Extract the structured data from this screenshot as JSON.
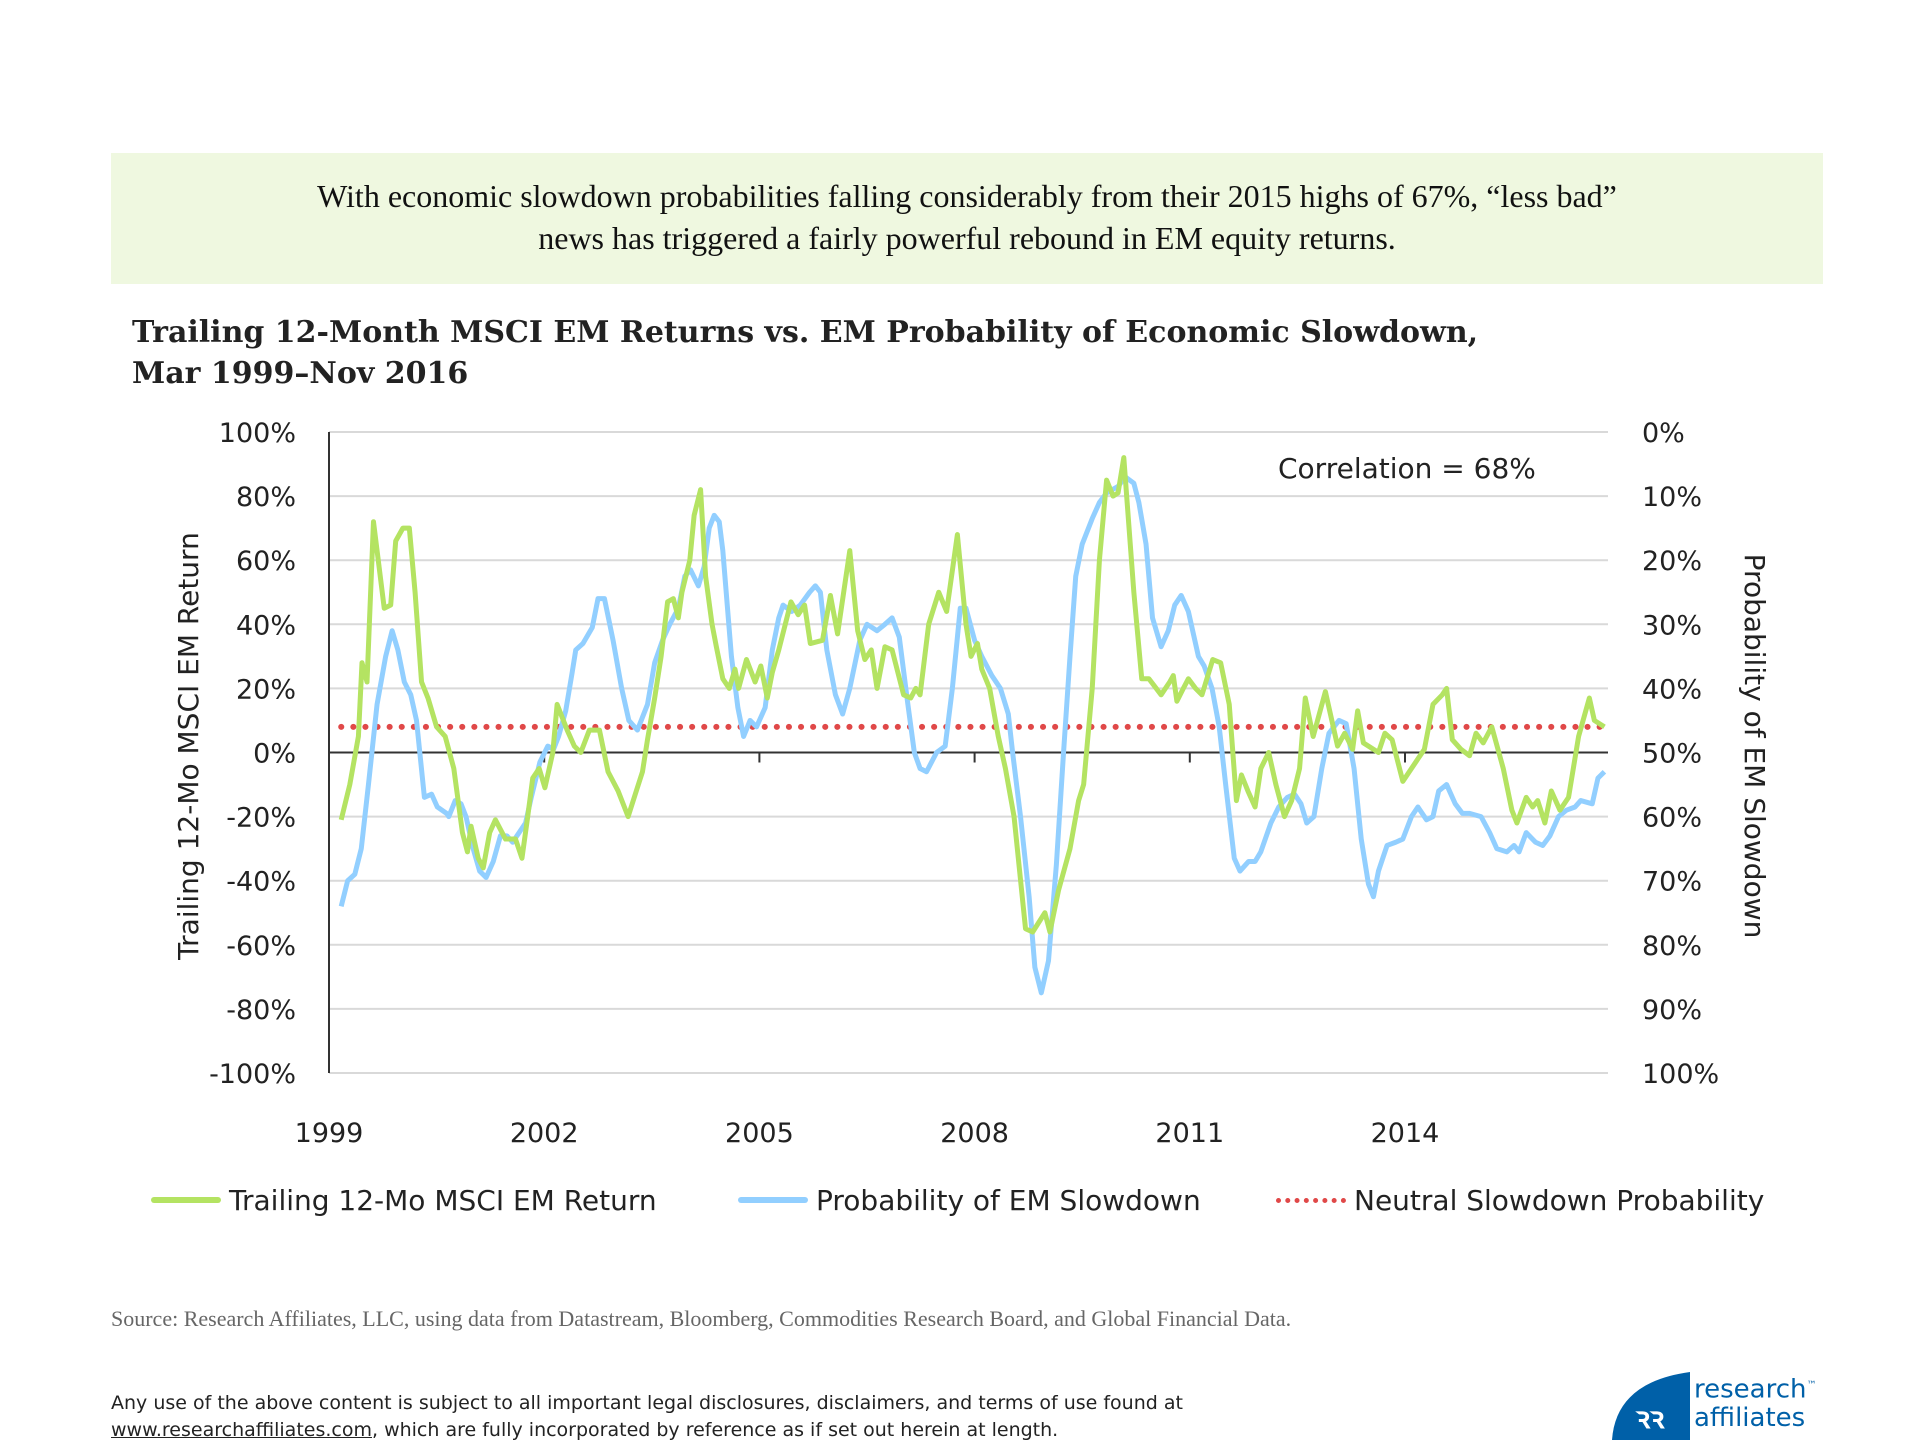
{
  "banner": {
    "line1": "With economic slowdown probabilities falling considerably from their 2015 highs of 67%, “less bad”",
    "line2": "news has triggered a fairly powerful rebound in EM equity returns."
  },
  "chart_data": {
    "type": "line",
    "title_line1": "Trailing 12-Month MSCI EM Returns vs. EM Probability of Economic Slowdown,",
    "title_line2": "Mar 1999–Nov 2016",
    "ylabel": "Trailing 12-Mo MSCI EM Return",
    "y2label": "Probability of EM Slowdown",
    "ylim": [
      -100,
      100
    ],
    "y2lim": [
      0,
      100
    ],
    "y2_inverted": true,
    "xlim": [
      1999,
      2016.83
    ],
    "x_ticks": [
      "1999",
      "2002",
      "2005",
      "2008",
      "2011",
      "2014"
    ],
    "y_ticks": [
      "100%",
      "80%",
      "60%",
      "40%",
      "20%",
      "0%",
      "-20%",
      "-40%",
      "-60%",
      "-80%",
      "-100%"
    ],
    "y2_ticks": [
      "0%",
      "10%",
      "20%",
      "30%",
      "40%",
      "50%",
      "60%",
      "70%",
      "80%",
      "90%",
      "100%"
    ],
    "grid": true,
    "legend_placement": "bottom",
    "annotation": "Correlation = 68%",
    "colors": {
      "return": "#b4e362",
      "probability": "#92cfff",
      "neutral": "#e04848"
    },
    "series": [
      {
        "name": "Trailing 12-Mo MSCI EM Return",
        "axis": "left",
        "x": [
          1999.17,
          1999.29,
          1999.41,
          1999.46,
          1999.53,
          1999.62,
          1999.77,
          1999.86,
          1999.93,
          2000.03,
          2000.12,
          2000.2,
          2000.29,
          2000.38,
          2000.5,
          2000.62,
          2000.74,
          2000.86,
          2000.93,
          2000.98,
          2001.08,
          2001.15,
          2001.24,
          2001.32,
          2001.46,
          2001.6,
          2001.69,
          2001.77,
          2001.84,
          2001.93,
          2002.01,
          2002.12,
          2002.18,
          2002.32,
          2002.42,
          2002.51,
          2002.63,
          2002.77,
          2002.89,
          2003.03,
          2003.17,
          2003.27,
          2003.37,
          2003.44,
          2003.54,
          2003.63,
          2003.72,
          2003.8,
          2003.87,
          2003.92,
          2004.03,
          2004.09,
          2004.18,
          2004.25,
          2004.34,
          2004.4,
          2004.49,
          2004.58,
          2004.66,
          2004.71,
          2004.82,
          2004.94,
          2005.02,
          2005.11,
          2005.18,
          2005.27,
          2005.44,
          2005.54,
          2005.63,
          2005.71,
          2005.88,
          2005.99,
          2006.09,
          2006.26,
          2006.37,
          2006.47,
          2006.56,
          2006.64,
          2006.75,
          2006.85,
          2007.01,
          2007.11,
          2007.18,
          2007.24,
          2007.36,
          2007.5,
          2007.61,
          2007.76,
          2007.88,
          2007.95,
          2008.04,
          2008.1,
          2008.21,
          2008.33,
          2008.43,
          2008.55,
          2008.71,
          2008.81,
          2008.98,
          2009.05,
          2009.17,
          2009.33,
          2009.45,
          2009.52,
          2009.64,
          2009.74,
          2009.84,
          2009.93,
          2010.0,
          2010.08,
          2010.22,
          2010.33,
          2010.43,
          2010.6,
          2010.72,
          2010.77,
          2010.82,
          2010.91,
          2010.98,
          2011.08,
          2011.17,
          2011.32,
          2011.43,
          2011.55,
          2011.65,
          2011.72,
          2011.81,
          2011.91,
          2011.99,
          2012.1,
          2012.2,
          2012.32,
          2012.42,
          2012.53,
          2012.61,
          2012.72,
          2012.89,
          2013.06,
          2013.16,
          2013.27,
          2013.34,
          2013.42,
          2013.63,
          2013.72,
          2013.82,
          2013.97,
          2014.18,
          2014.27,
          2014.39,
          2014.52,
          2014.58,
          2014.66,
          2014.78,
          2014.9,
          2014.99,
          2015.09,
          2015.21,
          2015.37,
          2015.49,
          2015.56,
          2015.69,
          2015.78,
          2015.85,
          2015.95,
          2016.04,
          2016.16,
          2016.28,
          2016.42,
          2016.57,
          2016.64,
          2016.78
        ],
        "values": [
          -21,
          -10,
          5,
          28,
          22,
          72,
          45,
          46,
          66,
          70,
          70,
          50,
          22,
          17,
          8,
          5,
          -5,
          -25,
          -31,
          -23,
          -33,
          -36,
          -25,
          -21,
          -27,
          -27,
          -33,
          -20,
          -8,
          -5,
          -11,
          0,
          15,
          7,
          2,
          0,
          7,
          7,
          -6,
          -12,
          -20,
          -13,
          -6,
          4,
          17,
          30,
          47,
          48,
          42,
          50,
          60,
          74,
          82,
          55,
          40,
          33,
          23,
          20,
          26,
          20,
          29,
          22,
          27,
          17,
          25,
          32,
          47,
          43,
          46,
          34,
          35,
          49,
          37,
          63,
          38,
          29,
          32,
          20,
          33,
          32,
          18,
          17,
          20,
          18,
          40,
          50,
          44,
          68,
          40,
          30,
          34,
          26,
          20,
          5,
          -5,
          -20,
          -55,
          -56,
          -50,
          -56,
          -43,
          -30,
          -15,
          -10,
          20,
          60,
          85,
          80,
          81,
          92,
          50,
          23,
          23,
          18,
          22,
          24,
          16,
          20,
          23,
          20,
          18,
          29,
          28,
          15,
          -15,
          -7,
          -12,
          -17,
          -5,
          0,
          -10,
          -20,
          -15,
          -5,
          17,
          5,
          19,
          2,
          6,
          1,
          13,
          3,
          0,
          6,
          4,
          -9,
          -2,
          1,
          15,
          18,
          20,
          4,
          1,
          -1,
          6,
          3,
          8,
          -5,
          -18,
          -22,
          -14,
          -17,
          -15,
          -22,
          -12,
          -18,
          -14,
          5,
          17,
          10,
          8
        ]
      },
      {
        "name": "Probability of EM Slowdown",
        "axis": "right",
        "x": [
          1999.17,
          1999.26,
          1999.36,
          1999.45,
          1999.55,
          1999.67,
          1999.79,
          1999.88,
          1999.96,
          2000.05,
          2000.14,
          2000.22,
          2000.33,
          2000.43,
          2000.51,
          2000.64,
          2000.67,
          2000.76,
          2000.84,
          2000.91,
          2001.01,
          2001.1,
          2001.19,
          2001.29,
          2001.39,
          2001.48,
          2001.56,
          2001.65,
          2001.74,
          2001.82,
          2001.94,
          2002.05,
          2002.13,
          2002.2,
          2002.3,
          2002.39,
          2002.44,
          2002.54,
          2002.67,
          2002.75,
          2002.84,
          2002.96,
          2003.08,
          2003.18,
          2003.3,
          2003.44,
          2003.54,
          2003.65,
          2003.75,
          2003.87,
          2003.96,
          2004.04,
          2004.15,
          2004.23,
          2004.3,
          2004.37,
          2004.44,
          2004.49,
          2004.61,
          2004.7,
          2004.78,
          2004.87,
          2004.96,
          2005.08,
          2005.18,
          2005.27,
          2005.33,
          2005.45,
          2005.57,
          2005.7,
          2005.78,
          2005.85,
          2005.94,
          2006.06,
          2006.16,
          2006.26,
          2006.4,
          2006.5,
          2006.64,
          2006.75,
          2006.85,
          2006.95,
          2007.07,
          2007.16,
          2007.24,
          2007.33,
          2007.47,
          2007.59,
          2007.69,
          2007.8,
          2007.88,
          2008.0,
          2008.1,
          2008.24,
          2008.36,
          2008.47,
          2008.53,
          2008.64,
          2008.76,
          2008.84,
          2008.93,
          2009.03,
          2009.14,
          2009.24,
          2009.33,
          2009.41,
          2009.5,
          2009.64,
          2009.74,
          2009.84,
          2010.0,
          2010.1,
          2010.22,
          2010.29,
          2010.39,
          2010.48,
          2010.6,
          2010.7,
          2010.79,
          2010.88,
          2010.98,
          2011.12,
          2011.2,
          2011.31,
          2011.41,
          2011.5,
          2011.62,
          2011.7,
          2011.82,
          2011.91,
          2011.99,
          2012.13,
          2012.24,
          2012.36,
          2012.46,
          2012.55,
          2012.63,
          2012.73,
          2012.84,
          2012.94,
          2013.08,
          2013.18,
          2013.29,
          2013.39,
          2013.49,
          2013.56,
          2013.63,
          2013.75,
          2013.87,
          2013.97,
          2014.09,
          2014.18,
          2014.3,
          2014.39,
          2014.47,
          2014.58,
          2014.7,
          2014.8,
          2014.9,
          2015.06,
          2015.18,
          2015.28,
          2015.42,
          2015.52,
          2015.59,
          2015.69,
          2015.82,
          2015.92,
          2016.02,
          2016.14,
          2016.25,
          2016.37,
          2016.45,
          2016.61,
          2016.69,
          2016.78
        ],
        "values": [
          74,
          70,
          69,
          65,
          55,
          42.5,
          35,
          31,
          34,
          39,
          41,
          45,
          57,
          56.5,
          58.5,
          59.5,
          60,
          57.5,
          58,
          60,
          65,
          68.5,
          69.5,
          67,
          63,
          63,
          64,
          62.5,
          61,
          57,
          51.5,
          49,
          49.5,
          47.5,
          43.5,
          37.5,
          34,
          33,
          30.5,
          26,
          26,
          32.5,
          40,
          45,
          46.5,
          42.5,
          36,
          32.5,
          30,
          27.5,
          22.5,
          21.5,
          24,
          21,
          15,
          13,
          14,
          18.5,
          35,
          43,
          47.5,
          45,
          46,
          43,
          34,
          29,
          27,
          28,
          27,
          25,
          24,
          25,
          34,
          41,
          44,
          40,
          32.5,
          30,
          31,
          30,
          29,
          32,
          42.5,
          50,
          52.5,
          53,
          50,
          49,
          40,
          27.5,
          27.5,
          32.5,
          35,
          38,
          40,
          44,
          50,
          60,
          72.5,
          83.5,
          87.5,
          82.5,
          67.5,
          50,
          35,
          22.5,
          17.5,
          13.5,
          11,
          9.5,
          8.5,
          7,
          8,
          11,
          17.5,
          29,
          33.5,
          31,
          27,
          25.5,
          28,
          35,
          36.5,
          40,
          46,
          55,
          66.5,
          68.5,
          67,
          67,
          65.5,
          61,
          58.5,
          57,
          56.5,
          58,
          61,
          60,
          52.5,
          47,
          45,
          45.5,
          52.5,
          63.5,
          70.5,
          72.5,
          68.5,
          64.5,
          64,
          63.5,
          60,
          58.5,
          60.5,
          60,
          56,
          55,
          58,
          59.5,
          59.5,
          60,
          62.5,
          65,
          65.5,
          64.5,
          65.5,
          62.5,
          64,
          64.5,
          63,
          60,
          59,
          58.5,
          57.5,
          58,
          54,
          53
        ]
      },
      {
        "name": "Neutral Slowdown Probability",
        "axis": "right",
        "constant": 46
      }
    ]
  },
  "source": "Source: Research Affiliates, LLC, using data from Datastream, Bloomberg, Commodities Research Board, and Global Financial Data.",
  "disclaimer": {
    "line1": "Any use of the above content is subject to all important legal disclosures, disclaimers, and terms of use found at",
    "link": "www.researchaffiliates.com",
    "line2_rest": ", which are fully incorporated by reference as if set out herein at length."
  },
  "logo": {
    "line1": "research",
    "line2": "affiliates",
    "tm": "™",
    "color": "#0060a8"
  }
}
